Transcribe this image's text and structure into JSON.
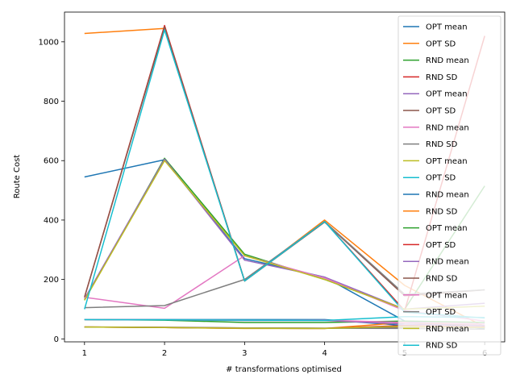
{
  "chart_data": {
    "type": "line",
    "title": "",
    "xlabel": "# transformations optimised",
    "ylabel": "Route Cost",
    "x": [
      1,
      2,
      3,
      4,
      5,
      6
    ],
    "xlim": [
      0.75,
      6.25
    ],
    "ylim": [
      -10,
      1100
    ],
    "xticks": [
      "1",
      "2",
      "3",
      "4",
      "5",
      "6"
    ],
    "yticks": [
      "0",
      "200",
      "400",
      "600",
      "800",
      "1000"
    ],
    "grid": false,
    "legend_position": "top-right",
    "series": [
      {
        "name": "OPT mean",
        "color": "#1f77b4",
        "values": [
          545,
          603,
          270,
          208,
          60,
          35
        ]
      },
      {
        "name": "OPT SD",
        "color": "#ff7f0e",
        "values": [
          1028,
          1045,
          195,
          400,
          180,
          40
        ]
      },
      {
        "name": "RND mean",
        "color": "#2ca02c",
        "values": [
          130,
          608,
          285,
          200,
          100,
          515
        ]
      },
      {
        "name": "RND SD",
        "color": "#d62728",
        "values": [
          140,
          1055,
          195,
          395,
          95,
          1020
        ]
      },
      {
        "name": "OPT mean",
        "color": "#9467bd",
        "values": [
          135,
          605,
          265,
          208,
          100,
          120
        ]
      },
      {
        "name": "OPT SD",
        "color": "#8c564b",
        "values": [
          140,
          1050,
          195,
          393,
          145,
          165
        ]
      },
      {
        "name": "RND mean",
        "color": "#e377c2",
        "values": [
          140,
          103,
          280,
          205,
          95,
          60
        ]
      },
      {
        "name": "RND SD",
        "color": "#7f7f7f",
        "values": [
          105,
          112,
          200,
          395,
          150,
          165
        ]
      },
      {
        "name": "OPT mean",
        "color": "#bcbd22",
        "values": [
          130,
          600,
          280,
          200,
          100,
          110
        ]
      },
      {
        "name": "OPT SD",
        "color": "#17becf",
        "values": [
          100,
          1040,
          195,
          395,
          90,
          70
        ]
      },
      {
        "name": "RND mean",
        "color": "#1f77b4",
        "values": [
          65,
          65,
          65,
          65,
          45,
          40
        ]
      },
      {
        "name": "RND SD",
        "color": "#ff7f0e",
        "values": [
          40,
          38,
          35,
          35,
          55,
          45
        ]
      },
      {
        "name": "OPT mean",
        "color": "#2ca02c",
        "values": [
          65,
          63,
          55,
          55,
          60,
          55
        ]
      },
      {
        "name": "OPT SD",
        "color": "#d62728",
        "values": [
          40,
          38,
          36,
          35,
          45,
          40
        ]
      },
      {
        "name": "RND mean",
        "color": "#9467bd",
        "values": [
          65,
          64,
          62,
          62,
          50,
          45
        ]
      },
      {
        "name": "RND SD",
        "color": "#8c564b",
        "values": [
          40,
          39,
          37,
          36,
          40,
          38
        ]
      },
      {
        "name": "OPT mean",
        "color": "#e377c2",
        "values": [
          65,
          64,
          63,
          63,
          55,
          50
        ]
      },
      {
        "name": "OPT SD",
        "color": "#7f7f7f",
        "values": [
          40,
          38,
          37,
          36,
          35,
          33
        ]
      },
      {
        "name": "RND mean",
        "color": "#bcbd22",
        "values": [
          40,
          38,
          36,
          35,
          42,
          38
        ]
      },
      {
        "name": "RND SD",
        "color": "#17becf",
        "values": [
          65,
          64,
          63,
          62,
          75,
          72
        ]
      }
    ]
  }
}
